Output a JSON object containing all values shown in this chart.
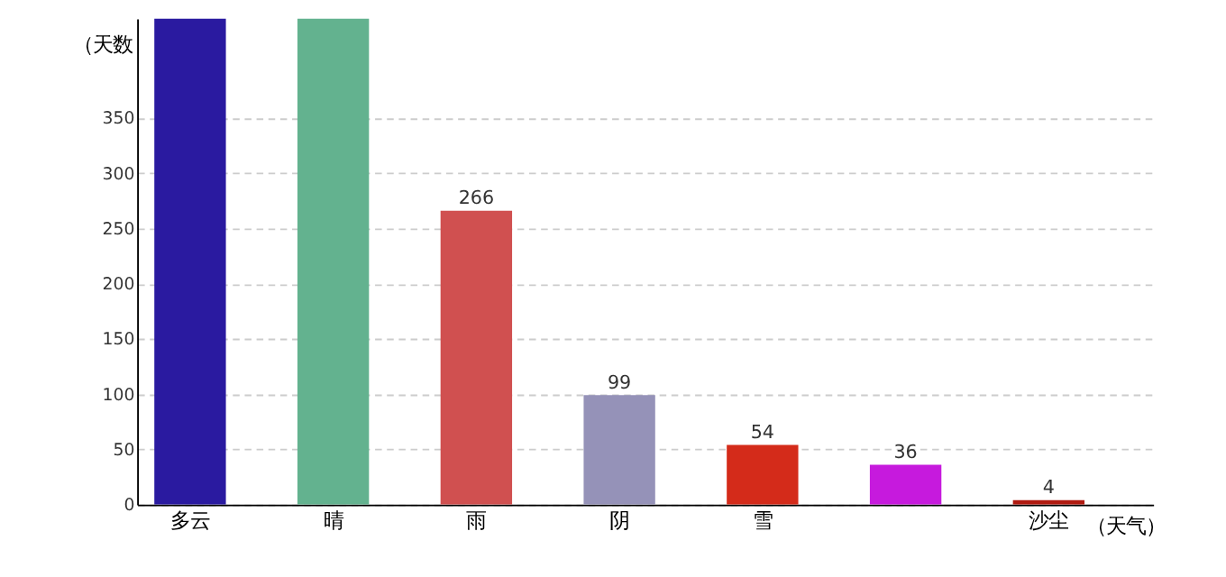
{
  "chart_data": {
    "type": "bar",
    "categories": [
      "多云",
      "晴",
      "雨",
      "阴",
      "雪",
      null,
      "沙尘"
    ],
    "values": [
      440,
      440,
      266,
      99,
      54,
      36,
      4
    ],
    "value_labels": [
      null,
      null,
      "266",
      "99",
      "54",
      "36",
      "4"
    ],
    "colors": [
      "#2a1aa0",
      "#63b28f",
      "#d05050",
      "#9592b8",
      "#d42b1a",
      "#c61add",
      "#b01a10"
    ],
    "ylabel": "（天数",
    "xlabel": "（天气）",
    "ylim": [
      0,
      440
    ],
    "yticks": [
      0,
      50,
      100,
      150,
      200,
      250,
      300,
      350
    ],
    "grid": "y"
  }
}
